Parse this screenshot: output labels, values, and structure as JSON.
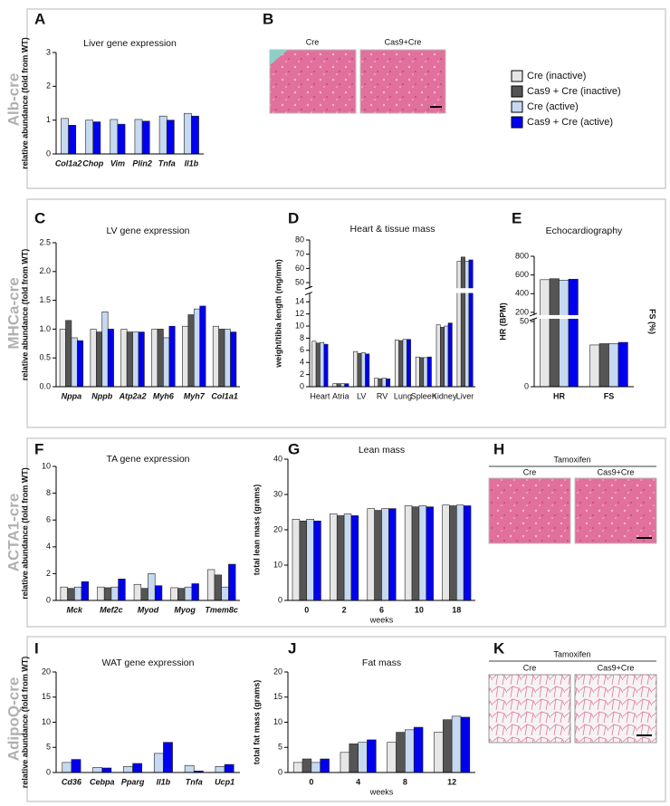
{
  "panels": [
    "A",
    "B",
    "C",
    "D",
    "E",
    "F",
    "G",
    "H",
    "I",
    "J",
    "K"
  ],
  "rows": [
    "Alb-cre",
    "MHCa-cre",
    "ACTA1-cre",
    "AdipoQ-cre"
  ],
  "legend": [
    {
      "name": "Cre (inactive)",
      "color": "#e6e6e6"
    },
    {
      "name": "Cas9 + Cre (inactive)",
      "color": "#555555"
    },
    {
      "name": "Cre (active)",
      "color": "#c6d9f1"
    },
    {
      "name": "Cas9 + Cre (active)",
      "color": "#0000ee"
    }
  ],
  "histology": [
    {
      "labels": [
        "Cre",
        "Cas9+Cre"
      ]
    },
    {
      "header": "Tamoxifen",
      "labels": [
        "Cre",
        "Cas9+Cre"
      ]
    },
    {
      "header": "Tamoxifen",
      "labels": [
        "Cre",
        "Cas9+Cre"
      ]
    }
  ],
  "chart_data": [
    {
      "type": "bar",
      "title": "Liver gene expression",
      "ylabel": "relative abundance (fold from WT)",
      "categories": [
        "Col1a2",
        "Chop",
        "Vim",
        "Plin2",
        "Tnfa",
        "Il1b"
      ],
      "series": [
        {
          "color": "#c6d9f1",
          "values": [
            1.05,
            1.0,
            1.02,
            1.02,
            1.12,
            1.2
          ]
        },
        {
          "color": "#0000ee",
          "values": [
            0.85,
            0.95,
            0.88,
            0.97,
            1.0,
            1.12
          ]
        }
      ],
      "ylim": [
        0,
        3
      ],
      "yticks": [
        0,
        1,
        2,
        3
      ]
    },
    {
      "type": "bar",
      "title": "LV gene expression",
      "ylabel": "relative abundance (fold from WT)",
      "categories": [
        "Nppa",
        "Nppb",
        "Atp2a2",
        "Myh6",
        "Myh7",
        "Col1a1"
      ],
      "series": [
        {
          "color": "#e6e6e6",
          "values": [
            1.0,
            1.0,
            1.0,
            1.0,
            1.05,
            1.05
          ]
        },
        {
          "color": "#555555",
          "values": [
            1.15,
            0.95,
            0.95,
            1.0,
            1.25,
            1.0
          ]
        },
        {
          "color": "#c6d9f1",
          "values": [
            0.85,
            1.3,
            0.95,
            0.85,
            1.35,
            1.0
          ]
        },
        {
          "color": "#0000ee",
          "values": [
            0.8,
            1.0,
            0.95,
            1.05,
            1.4,
            0.95
          ]
        }
      ],
      "ylim": [
        0,
        2.5
      ],
      "yticks": [
        {
          "value": 0,
          "label": "0.0"
        },
        {
          "value": 0.5,
          "label": "0.5"
        },
        {
          "value": 1,
          "label": "1.0"
        },
        {
          "value": 1.5,
          "label": "1.5"
        },
        {
          "value": 2,
          "label": "2.0"
        },
        {
          "value": 2.5,
          "label": "2.5"
        }
      ]
    },
    {
      "type": "bar",
      "title": "Heart & tissue mass",
      "ylabel": "weight/tibia length (mg/mm)",
      "categories": [
        "Heart",
        "Atria",
        "LV",
        "RV",
        "Lung",
        "Spleen",
        "Kidney",
        "Liver"
      ],
      "series": [
        {
          "color": "#e6e6e6",
          "values": [
            7.5,
            0.5,
            5.8,
            1.4,
            7.7,
            4.9,
            10.2,
            65
          ]
        },
        {
          "color": "#555555",
          "values": [
            7.2,
            0.5,
            5.5,
            1.3,
            7.6,
            4.8,
            9.8,
            68
          ]
        },
        {
          "color": "#c6d9f1",
          "values": [
            7.3,
            0.5,
            5.6,
            1.4,
            7.8,
            4.8,
            10.0,
            65
          ]
        },
        {
          "color": "#0000ee",
          "values": [
            7.0,
            0.5,
            5.4,
            1.3,
            7.8,
            4.9,
            10.5,
            66
          ]
        }
      ],
      "ylim": [
        0,
        80
      ],
      "ybreak": [
        15,
        48
      ],
      "yticks": [
        0,
        2,
        4,
        6,
        8,
        10,
        12,
        14,
        50,
        60,
        70,
        80
      ]
    },
    {
      "type": "bar",
      "title": "Echocardiography",
      "ylabel": "HR (BPM)",
      "y2label": "FS (%)",
      "categories": [
        "HR",
        "FS"
      ],
      "series": [
        {
          "color": "#e6e6e6",
          "values": [
            550,
            32
          ]
        },
        {
          "color": "#555555",
          "values": [
            560,
            33
          ]
        },
        {
          "color": "#c6d9f1",
          "values": [
            545,
            33
          ]
        },
        {
          "color": "#0000ee",
          "values": [
            555,
            34
          ]
        }
      ],
      "ylim": [
        0,
        800
      ],
      "ybreak": [
        50,
        200
      ],
      "yticks": [
        0,
        50,
        200,
        400,
        600,
        800
      ]
    },
    {
      "type": "bar",
      "title": "TA gene expression",
      "ylabel": "relative abundance (fold from WT)",
      "categories": [
        "Mck",
        "Mef2c",
        "Myod",
        "Myog",
        "Tmem8c"
      ],
      "series": [
        {
          "color": "#e6e6e6",
          "values": [
            1.0,
            1.0,
            1.2,
            0.95,
            2.3
          ]
        },
        {
          "color": "#555555",
          "values": [
            0.9,
            0.95,
            0.9,
            0.9,
            1.9
          ]
        },
        {
          "color": "#c6d9f1",
          "values": [
            1.0,
            1.0,
            2.0,
            1.0,
            1.0
          ]
        },
        {
          "color": "#0000ee",
          "values": [
            1.4,
            1.6,
            1.1,
            1.25,
            2.7
          ]
        }
      ],
      "ylim": [
        0,
        10
      ],
      "yticks": [
        0,
        2,
        4,
        6,
        8,
        10
      ]
    },
    {
      "type": "bar",
      "title": "Lean mass",
      "ylabel": "total lean mass (grams)",
      "xlabel": "weeks",
      "categories": [
        "0",
        "2",
        "6",
        "10",
        "18"
      ],
      "series": [
        {
          "color": "#e6e6e6",
          "values": [
            23,
            24.5,
            26,
            26.8,
            27
          ]
        },
        {
          "color": "#555555",
          "values": [
            22.5,
            24,
            25.5,
            26.5,
            26.8
          ]
        },
        {
          "color": "#c6d9f1",
          "values": [
            23,
            24.5,
            26,
            26.8,
            27
          ]
        },
        {
          "color": "#0000ee",
          "values": [
            22.5,
            24,
            26,
            26.5,
            26.8
          ]
        }
      ],
      "ylim": [
        0,
        40
      ],
      "yticks": [
        0,
        10,
        20,
        30,
        40
      ]
    },
    {
      "type": "bar",
      "title": "WAT gene expression",
      "ylabel": "relative abundance (fold from WT)",
      "categories": [
        "Cd36",
        "Cebpa",
        "Pparg",
        "Il1b",
        "Tnfa",
        "Ucp1"
      ],
      "series": [
        {
          "color": "#c6d9f1",
          "values": [
            2.0,
            1.0,
            1.2,
            3.8,
            1.4,
            1.2
          ]
        },
        {
          "color": "#0000ee",
          "values": [
            2.6,
            0.9,
            1.8,
            6.0,
            0.3,
            1.6
          ]
        }
      ],
      "ylim": [
        0,
        20
      ],
      "yticks": [
        0,
        5,
        10,
        15,
        20
      ]
    },
    {
      "type": "bar",
      "title": "Fat mass",
      "ylabel": "total fat mass (grams)",
      "xlabel": "weeks",
      "categories": [
        "0",
        "4",
        "8",
        "12"
      ],
      "series": [
        {
          "color": "#e6e6e6",
          "values": [
            2.0,
            4.0,
            6.0,
            8.0
          ]
        },
        {
          "color": "#555555",
          "values": [
            2.7,
            5.7,
            8.0,
            10.5
          ]
        },
        {
          "color": "#c6d9f1",
          "values": [
            2.0,
            6.0,
            8.5,
            11.2
          ]
        },
        {
          "color": "#0000ee",
          "values": [
            2.7,
            6.5,
            9.0,
            11.0
          ]
        }
      ],
      "ylim": [
        0,
        20
      ],
      "yticks": [
        0,
        5,
        10,
        15,
        20
      ]
    }
  ]
}
